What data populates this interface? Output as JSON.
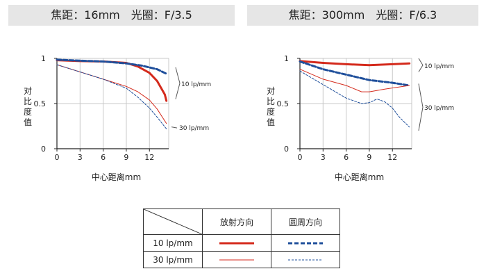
{
  "headers": {
    "left": "焦距：16mm　光圈：F/3.5",
    "right": "焦距：300mm　光圈：F/6.3"
  },
  "colors": {
    "radial": "#d42a1c",
    "meridional": "#1f4f9b",
    "axis": "#222222",
    "grid": "#c8c8c8"
  },
  "chart_data": [
    {
      "type": "line",
      "ylabel": "对比度值",
      "xlabel": "中心距离mm",
      "xlim": [
        0,
        14.5
      ],
      "ylim": [
        0,
        1
      ],
      "xticks": [
        "0",
        "3",
        "6",
        "9",
        "12"
      ],
      "xtick_values": [
        0,
        3,
        6,
        9,
        12
      ],
      "yticks": [
        "0",
        "0.5",
        "1"
      ],
      "ytick_values": [
        0,
        0.5,
        1
      ],
      "grid": true,
      "annotations": [
        {
          "text": "10 lp/mm",
          "y_range": [
            0.55,
            0.9
          ]
        },
        {
          "text": "30 lp/mm",
          "y": 0.23
        }
      ],
      "series": [
        {
          "name": "放射方向 10 lp/mm",
          "style": "solid-thick",
          "points": [
            [
              0,
              0.98
            ],
            [
              3,
              0.97
            ],
            [
              6,
              0.965
            ],
            [
              9,
              0.95
            ],
            [
              10.5,
              0.91
            ],
            [
              12,
              0.84
            ],
            [
              13,
              0.75
            ],
            [
              14,
              0.6
            ],
            [
              14.2,
              0.53
            ]
          ]
        },
        {
          "name": "圆周方向 10 lp/mm",
          "style": "dashed-thick",
          "points": [
            [
              0,
              0.985
            ],
            [
              3,
              0.975
            ],
            [
              6,
              0.965
            ],
            [
              9,
              0.945
            ],
            [
              11,
              0.92
            ],
            [
              13,
              0.88
            ],
            [
              14.2,
              0.83
            ]
          ]
        },
        {
          "name": "放射方向 30 lp/mm",
          "style": "solid-thin",
          "points": [
            [
              0,
              0.93
            ],
            [
              3,
              0.85
            ],
            [
              6,
              0.77
            ],
            [
              9,
              0.69
            ],
            [
              10.5,
              0.63
            ],
            [
              12,
              0.54
            ],
            [
              13,
              0.44
            ],
            [
              14.2,
              0.28
            ]
          ]
        },
        {
          "name": "圆周方向 30 lp/mm",
          "style": "dashed-thin",
          "points": [
            [
              0,
              0.93
            ],
            [
              3,
              0.85
            ],
            [
              6,
              0.77
            ],
            [
              9,
              0.67
            ],
            [
              10.5,
              0.57
            ],
            [
              12,
              0.45
            ],
            [
              13,
              0.35
            ],
            [
              14.2,
              0.22
            ]
          ]
        }
      ]
    },
    {
      "type": "line",
      "ylabel": "对比度值",
      "xlabel": "中心距离mm",
      "xlim": [
        0,
        14.5
      ],
      "ylim": [
        0,
        1
      ],
      "xticks": [
        "0",
        "3",
        "6",
        "9",
        "12"
      ],
      "xtick_values": [
        0,
        3,
        6,
        9,
        12
      ],
      "yticks": [
        "0",
        "0.5",
        "1"
      ],
      "ytick_values": [
        0,
        0.5,
        1
      ],
      "grid": true,
      "annotations": [
        {
          "text": "10 lp/mm",
          "y_range": [
            0.85,
            1.0
          ]
        },
        {
          "text": "30 lp/mm",
          "y_range": [
            0.2,
            0.72
          ]
        }
      ],
      "series": [
        {
          "name": "放射方向 10 lp/mm",
          "style": "solid-thick",
          "points": [
            [
              0,
              0.97
            ],
            [
              3,
              0.95
            ],
            [
              6,
              0.935
            ],
            [
              9,
              0.925
            ],
            [
              12,
              0.935
            ],
            [
              14.2,
              0.945
            ]
          ]
        },
        {
          "name": "圆周方向 10 lp/mm",
          "style": "dashed-thick",
          "points": [
            [
              0,
              0.965
            ],
            [
              3,
              0.88
            ],
            [
              6,
              0.82
            ],
            [
              9,
              0.76
            ],
            [
              12,
              0.73
            ],
            [
              14.2,
              0.7
            ]
          ]
        },
        {
          "name": "放射方向 30 lp/mm",
          "style": "solid-thin",
          "points": [
            [
              0,
              0.88
            ],
            [
              3,
              0.77
            ],
            [
              6,
              0.7
            ],
            [
              8,
              0.63
            ],
            [
              9,
              0.63
            ],
            [
              11,
              0.66
            ],
            [
              14.2,
              0.7
            ]
          ]
        },
        {
          "name": "圆周方向 30 lp/mm",
          "style": "dashed-thin",
          "points": [
            [
              0,
              0.86
            ],
            [
              3,
              0.71
            ],
            [
              6,
              0.56
            ],
            [
              8,
              0.5
            ],
            [
              9,
              0.51
            ],
            [
              10,
              0.55
            ],
            [
              11,
              0.52
            ],
            [
              12,
              0.45
            ],
            [
              13,
              0.34
            ],
            [
              14.2,
              0.24
            ]
          ]
        }
      ]
    }
  ],
  "legend": {
    "columns": [
      "放射方向",
      "圆周方向"
    ],
    "rows": [
      {
        "label": "10 lp/mm",
        "radial_style": "solid-thick",
        "meridional_style": "dashed-thick"
      },
      {
        "label": "30 lp/mm",
        "radial_style": "solid-thin",
        "meridional_style": "dashed-thin"
      }
    ]
  }
}
